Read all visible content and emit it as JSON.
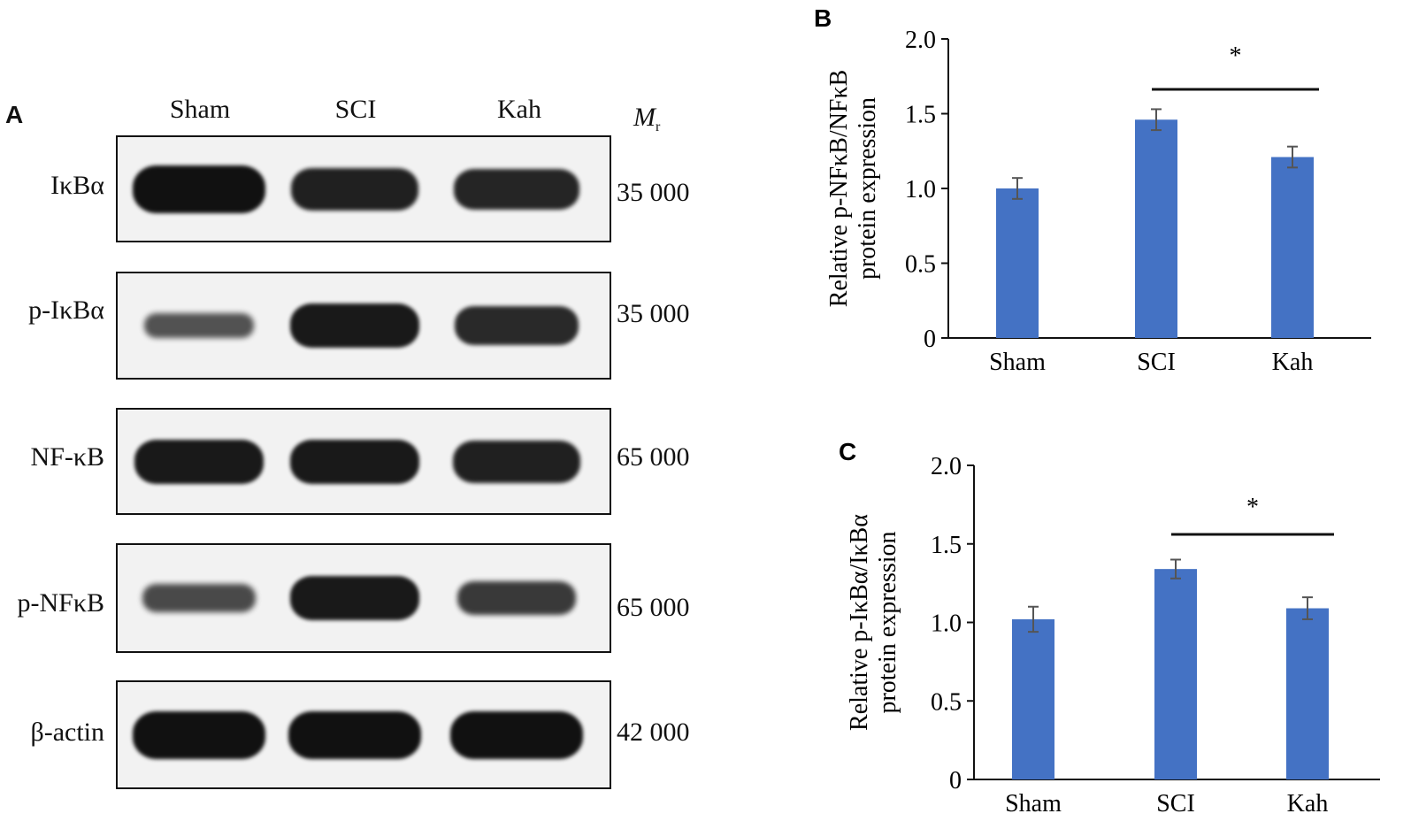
{
  "panel_a": {
    "letter": "A",
    "lanes": [
      "Sham",
      "SCI",
      "Kah"
    ],
    "mr_label": "M",
    "mr_sub": "r",
    "blots": [
      {
        "name": "IκBα",
        "mw": "35 000",
        "bands": [
          1.0,
          0.85,
          0.8
        ]
      },
      {
        "name": "p-IκBα",
        "mw": "35 000",
        "bands": [
          0.35,
          0.9,
          0.75
        ]
      },
      {
        "name": "NF-κB",
        "mw": "65 000",
        "bands": [
          0.9,
          0.9,
          0.85
        ]
      },
      {
        "name": "p-NFκB",
        "mw": "65 000",
        "bands": [
          0.45,
          0.9,
          0.6
        ]
      },
      {
        "name": "β-actin",
        "mw": "42 000",
        "bands": [
          1.0,
          1.0,
          1.0
        ]
      }
    ]
  },
  "chart_data": [
    {
      "panel": "B",
      "type": "bar",
      "categories": [
        "Sham",
        "SCI",
        "Kah"
      ],
      "values": [
        1.0,
        1.46,
        1.21
      ],
      "errors": [
        0.07,
        0.07,
        0.07
      ],
      "ylabel_line1": "Relative p-NFκB/NFκB",
      "ylabel_line2": "protein expression",
      "ylim": [
        0,
        2.0
      ],
      "yticks": [
        0,
        0.5,
        1.0,
        1.5,
        2.0
      ],
      "ytick_labels": [
        "0",
        "0.5",
        "1.0",
        "1.5",
        "2.0"
      ],
      "significance": {
        "from": "SCI",
        "to": "Kah",
        "label": "*"
      },
      "bar_color": "#4472c4"
    },
    {
      "panel": "C",
      "type": "bar",
      "categories": [
        "Sham",
        "SCI",
        "Kah"
      ],
      "values": [
        1.02,
        1.34,
        1.09
      ],
      "errors": [
        0.08,
        0.06,
        0.07
      ],
      "ylabel_line1": "Relative p-IκBα/IκBα",
      "ylabel_line2": "protein expression",
      "ylim": [
        0,
        2.0
      ],
      "yticks": [
        0,
        0.5,
        1.0,
        1.5,
        2.0
      ],
      "ytick_labels": [
        "0",
        "0.5",
        "1.0",
        "1.5",
        "2.0"
      ],
      "significance": {
        "from": "SCI",
        "to": "Kah",
        "label": "*"
      },
      "bar_color": "#4472c4"
    }
  ]
}
